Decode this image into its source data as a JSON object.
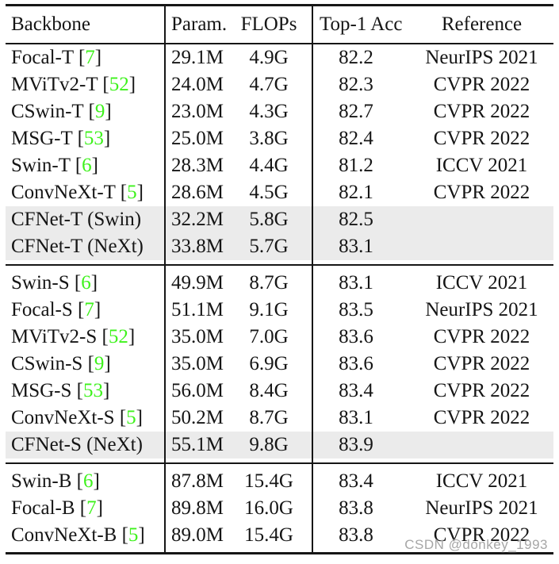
{
  "colors": {
    "citation_green": "#3ef21c",
    "highlight_gray": "#ebebeb",
    "rule_black": "#161616",
    "watermark_gray": "#a6a6a6"
  },
  "header": {
    "backbone": "Backbone",
    "param": "Param.",
    "flops": "FLOPs",
    "top1": "Top-1 Acc",
    "reference": "Reference"
  },
  "table": {
    "columns": [
      "Backbone",
      "Param.",
      "FLOPs",
      "Top-1 Acc",
      "Reference"
    ],
    "groups": [
      {
        "rows": [
          {
            "name": "Focal-T",
            "cite": "7",
            "param": "29.1M",
            "flops": "4.9G",
            "top1": "82.2",
            "reference": "NeurIPS 2021",
            "highlight": false
          },
          {
            "name": "MViTv2-T",
            "cite": "52",
            "param": "24.0M",
            "flops": "4.7G",
            "top1": "82.3",
            "reference": "CVPR 2022",
            "highlight": false
          },
          {
            "name": "CSwin-T",
            "cite": "9",
            "param": "23.0M",
            "flops": "4.3G",
            "top1": "82.7",
            "reference": "CVPR 2022",
            "highlight": false
          },
          {
            "name": "MSG-T",
            "cite": "53",
            "param": "25.0M",
            "flops": "3.8G",
            "top1": "82.4",
            "reference": "CVPR 2022",
            "highlight": false
          },
          {
            "name": "Swin-T",
            "cite": "6",
            "param": "28.3M",
            "flops": "4.4G",
            "top1": "81.2",
            "reference": "ICCV 2021",
            "highlight": false
          },
          {
            "name": "ConvNeXt-T",
            "cite": "5",
            "param": "28.6M",
            "flops": "4.5G",
            "top1": "82.1",
            "reference": "CVPR 2022",
            "highlight": false
          },
          {
            "name": "CFNet-T (Swin)",
            "cite": null,
            "param": "32.2M",
            "flops": "5.8G",
            "top1": "82.5",
            "reference": "",
            "highlight": true
          },
          {
            "name": "CFNet-T (NeXt)",
            "cite": null,
            "param": "33.8M",
            "flops": "5.7G",
            "top1": "83.1",
            "reference": "",
            "highlight": true
          }
        ]
      },
      {
        "rows": [
          {
            "name": "Swin-S",
            "cite": "6",
            "param": "49.9M",
            "flops": "8.7G",
            "top1": "83.1",
            "reference": "ICCV 2021",
            "highlight": false
          },
          {
            "name": "Focal-S",
            "cite": "7",
            "param": "51.1M",
            "flops": "9.1G",
            "top1": "83.5",
            "reference": "NeurIPS 2021",
            "highlight": false
          },
          {
            "name": "MViTv2-S",
            "cite": "52",
            "param": "35.0M",
            "flops": "7.0G",
            "top1": "83.6",
            "reference": "CVPR 2022",
            "highlight": false
          },
          {
            "name": "CSwin-S",
            "cite": "9",
            "param": "35.0M",
            "flops": "6.9G",
            "top1": "83.6",
            "reference": "CVPR 2022",
            "highlight": false
          },
          {
            "name": "MSG-S",
            "cite": "53",
            "param": "56.0M",
            "flops": "8.4G",
            "top1": "83.4",
            "reference": "CVPR 2022",
            "highlight": false
          },
          {
            "name": "ConvNeXt-S",
            "cite": "5",
            "param": "50.2M",
            "flops": "8.7G",
            "top1": "83.1",
            "reference": "CVPR 2022",
            "highlight": false
          },
          {
            "name": "CFNet-S (NeXt)",
            "cite": null,
            "param": "55.1M",
            "flops": "9.8G",
            "top1": "83.9",
            "reference": "",
            "highlight": true
          }
        ]
      },
      {
        "rows": [
          {
            "name": "Swin-B",
            "cite": "6",
            "param": "87.8M",
            "flops": "15.4G",
            "top1": "83.4",
            "reference": "ICCV 2021",
            "highlight": false
          },
          {
            "name": "Focal-B",
            "cite": "7",
            "param": "89.8M",
            "flops": "16.0G",
            "top1": "83.8",
            "reference": "NeurIPS 2021",
            "highlight": false
          },
          {
            "name": "ConvNeXt-B",
            "cite": "5",
            "param": "89.0M",
            "flops": "15.4G",
            "top1": "83.8",
            "reference": "CVPR 2022",
            "highlight": false
          }
        ]
      }
    ]
  },
  "watermark": {
    "text": "CSDN @donkey_1993"
  }
}
